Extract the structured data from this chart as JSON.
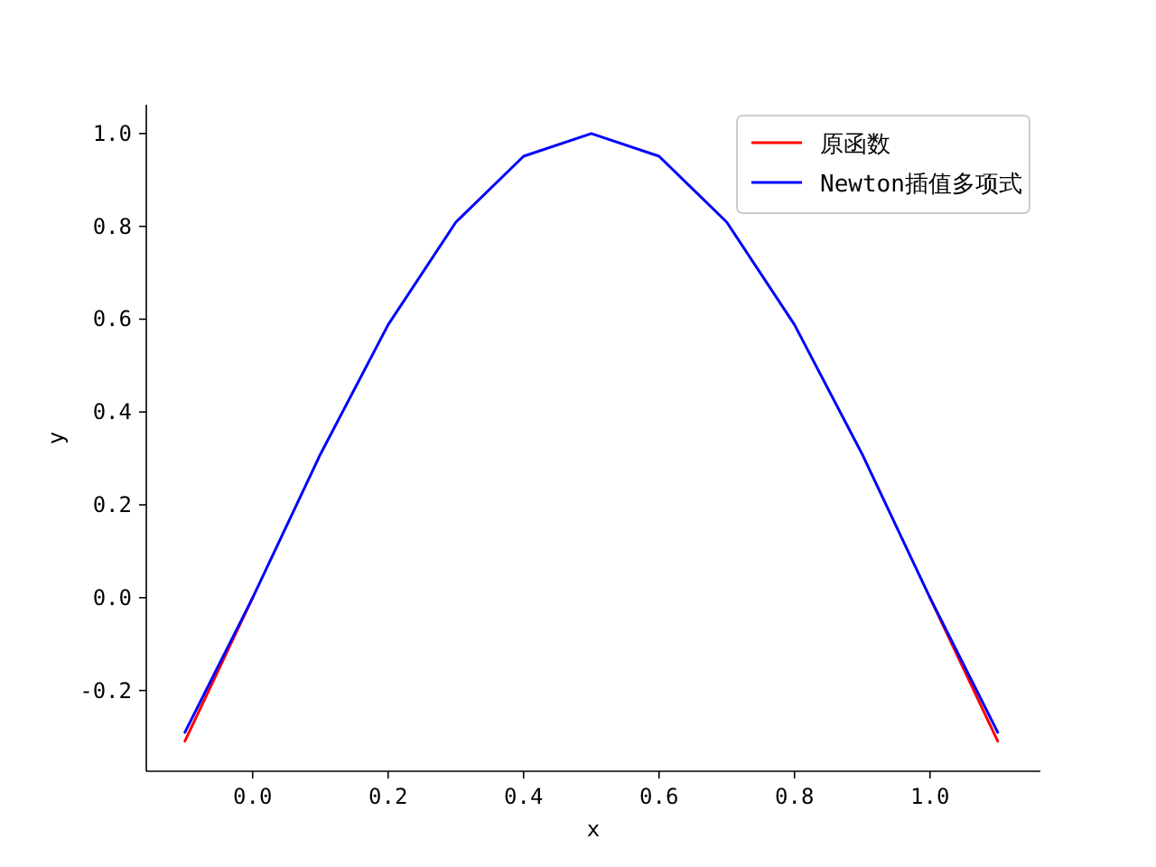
{
  "chart_data": {
    "type": "line",
    "xlabel": "x",
    "ylabel": "y",
    "x": [
      -0.1,
      0.0,
      0.1,
      0.2,
      0.3,
      0.4,
      0.5,
      0.6,
      0.7,
      0.8,
      0.9,
      1.0,
      1.1
    ],
    "series": [
      {
        "name": "原函数",
        "color": "#ff0000",
        "values": [
          -0.309,
          0.0,
          null,
          null,
          null,
          null,
          null,
          null,
          null,
          null,
          null,
          0.0,
          -0.309
        ]
      },
      {
        "name": "Newton插值多项式",
        "color": "#0000ff",
        "values": [
          -0.29,
          0.0,
          0.309,
          0.588,
          0.809,
          0.951,
          1.0,
          0.951,
          0.809,
          0.588,
          0.309,
          0.0,
          -0.29
        ]
      }
    ],
    "xlim": [
      -0.157,
      1.163
    ],
    "ylim": [
      -0.374,
      1.062
    ],
    "xticks": [
      {
        "value": 0,
        "label": "0.0"
      },
      {
        "value": 0.2,
        "label": "0.2"
      },
      {
        "value": 0.4,
        "label": "0.4"
      },
      {
        "value": 0.6,
        "label": "0.6"
      },
      {
        "value": 0.8,
        "label": "0.8"
      },
      {
        "value": 1.0,
        "label": "1.0"
      }
    ],
    "yticks": [
      {
        "value": -0.2,
        "label": "-0.2"
      },
      {
        "value": 0,
        "label": "0.0"
      },
      {
        "value": 0.2,
        "label": "0.2"
      },
      {
        "value": 0.4,
        "label": "0.4"
      },
      {
        "value": 0.6,
        "label": "0.6"
      },
      {
        "value": 0.8,
        "label": "0.8"
      },
      {
        "value": 1.0,
        "label": "1.0"
      }
    ],
    "grid": false,
    "legend": "top right",
    "marker": "none",
    "line_style": "solid"
  }
}
